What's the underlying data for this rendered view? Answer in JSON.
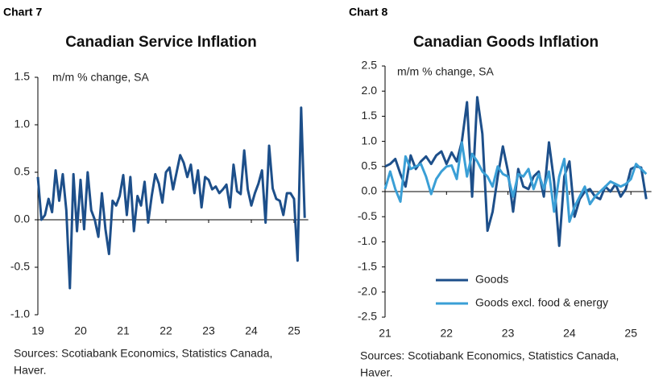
{
  "chart_data": [
    {
      "type": "line",
      "chart_label": "Chart 7",
      "title": "Canadian Service Inflation",
      "subtitle": "m/m % change, SA",
      "categories": [
        "19",
        null,
        null,
        null,
        null,
        null,
        null,
        null,
        null,
        null,
        null,
        null,
        "20",
        null,
        null,
        null,
        null,
        null,
        null,
        null,
        null,
        null,
        null,
        null,
        "21",
        null,
        null,
        null,
        null,
        null,
        null,
        null,
        null,
        null,
        null,
        null,
        "22",
        null,
        null,
        null,
        null,
        null,
        null,
        null,
        null,
        null,
        null,
        null,
        "23",
        null,
        null,
        null,
        null,
        null,
        null,
        null,
        null,
        null,
        null,
        null,
        "24",
        null,
        null,
        null,
        null,
        null,
        null,
        null,
        null,
        null,
        null,
        null,
        "25",
        null,
        null,
        null
      ],
      "values": [
        0.45,
        0.0,
        0.05,
        0.22,
        0.08,
        0.52,
        0.2,
        0.48,
        0.1,
        -0.72,
        0.48,
        -0.12,
        0.42,
        -0.1,
        0.5,
        0.1,
        0.0,
        -0.18,
        0.28,
        -0.1,
        -0.36,
        0.2,
        0.15,
        0.25,
        0.47,
        0.05,
        0.45,
        -0.12,
        0.25,
        0.15,
        0.4,
        -0.03,
        0.25,
        0.48,
        0.38,
        0.18,
        0.5,
        0.55,
        0.32,
        0.5,
        0.68,
        0.6,
        0.45,
        0.58,
        0.28,
        0.52,
        0.13,
        0.45,
        0.42,
        0.32,
        0.35,
        0.28,
        0.32,
        0.37,
        0.13,
        0.58,
        0.3,
        0.27,
        0.73,
        0.32,
        0.15,
        0.28,
        0.38,
        0.52,
        -0.03,
        0.78,
        0.33,
        0.22,
        0.2,
        0.05,
        0.28,
        0.28,
        0.22,
        -0.43,
        1.18,
        0.02
      ],
      "color": "#1d4f8a",
      "ylim": [
        -1.0,
        1.5
      ],
      "yticks": [
        {
          "value": -1,
          "label": "-1.0"
        },
        -0.5,
        {
          "value": 0,
          "label": "0.0"
        },
        0.5,
        {
          "value": 1,
          "label": "1.0"
        },
        1.5
      ],
      "source": [
        "Sources: Scotiabank Economics, Statistics Canada,",
        "Haver."
      ]
    },
    {
      "type": "line",
      "chart_label": "Chart 8",
      "title": "Canadian Goods Inflation",
      "subtitle": "m/m % change, SA",
      "categories": [
        "21",
        null,
        null,
        null,
        null,
        null,
        null,
        null,
        null,
        null,
        null,
        null,
        "22",
        null,
        null,
        null,
        null,
        null,
        null,
        null,
        null,
        null,
        null,
        null,
        "23",
        null,
        null,
        null,
        null,
        null,
        null,
        null,
        null,
        null,
        null,
        null,
        "24",
        null,
        null,
        null,
        null,
        null,
        null,
        null,
        null,
        null,
        null,
        null,
        "25",
        null,
        null,
        null
      ],
      "series": [
        {
          "name": "Goods",
          "color": "#1d4f8a",
          "values": [
            0.5,
            0.55,
            0.65,
            0.35,
            0.1,
            0.72,
            0.45,
            0.6,
            0.7,
            0.55,
            0.72,
            0.8,
            0.55,
            0.78,
            0.6,
            1.0,
            1.78,
            -0.1,
            1.88,
            1.15,
            -0.78,
            -0.4,
            0.3,
            0.9,
            0.4,
            -0.4,
            0.45,
            0.1,
            0.05,
            0.3,
            0.4,
            -0.1,
            0.98,
            0.2,
            -1.08,
            0.3,
            0.6,
            -0.5,
            -0.15,
            0.0,
            0.05,
            -0.1,
            -0.15,
            0.1,
            0.0,
            0.15,
            -0.1,
            0.05,
            0.45,
            0.5,
            0.48,
            -0.15
          ]
        },
        {
          "name": "Goods excl. food & energy",
          "color": "#3a9fd6",
          "values": [
            0.05,
            0.4,
            0.05,
            -0.2,
            0.7,
            0.45,
            0.5,
            0.55,
            0.3,
            -0.05,
            0.25,
            0.4,
            0.5,
            0.52,
            0.25,
            0.98,
            0.3,
            0.75,
            0.6,
            0.4,
            0.3,
            0.1,
            0.5,
            0.35,
            0.3,
            -0.1,
            0.35,
            0.3,
            0.45,
            0.05,
            0.35,
            0.05,
            0.4,
            -0.4,
            0.3,
            0.65,
            -0.6,
            -0.3,
            -0.1,
            0.1,
            -0.25,
            -0.1,
            0.0,
            0.1,
            0.2,
            0.15,
            0.1,
            0.15,
            0.25,
            0.55,
            0.45,
            0.35
          ]
        }
      ],
      "ylim": [
        -2.5,
        2.5
      ],
      "yticks": [
        -2.5,
        {
          "value": -2,
          "label": "-2.0"
        },
        -1.5,
        {
          "value": -1,
          "label": "-1.0"
        },
        -0.5,
        {
          "value": 0,
          "label": "0.0"
        },
        0.5,
        {
          "value": 1,
          "label": "1.0"
        },
        1.5,
        {
          "value": 2,
          "label": "2.0"
        },
        2.5
      ],
      "legend": "lower-center",
      "source": [
        "Sources: Scotiabank Economics, Statistics Canada,",
        "Haver."
      ]
    }
  ]
}
